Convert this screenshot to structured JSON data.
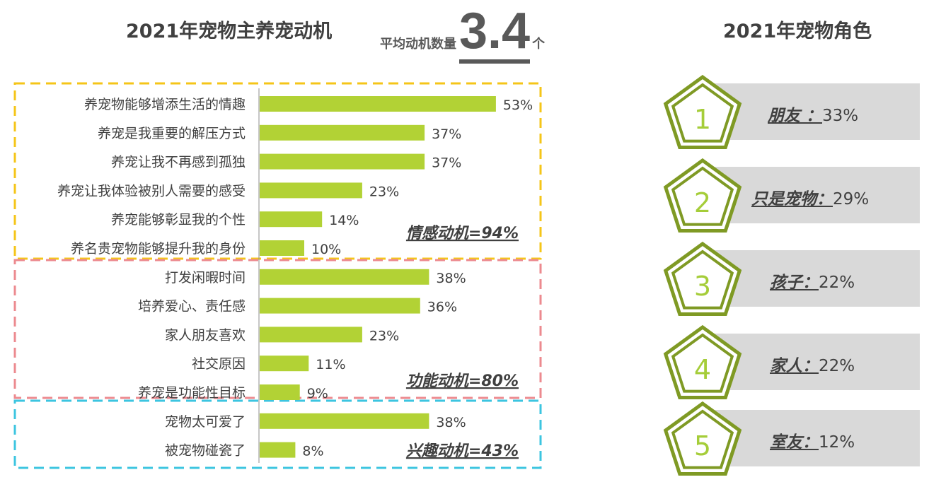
{
  "title_left": "2021年宠物主养宠动机",
  "avg": {
    "label": "平均动机数量",
    "value": "3.4",
    "unit": "个"
  },
  "title_right": "2021年宠物角色",
  "colors": {
    "bar": "#b2d235",
    "group_emotional": "#f5c518",
    "group_functional": "#ec8a8f",
    "group_interest": "#3cc5e0",
    "pentagon": "#7f9a24",
    "pentagon_number": "#a5cd39",
    "band": "#d9d9d9"
  },
  "chart_data": {
    "type": "bar",
    "orientation": "horizontal",
    "categories": [
      "养宠物能够增添生活的情趣",
      "养宠是我重要的解压方式",
      "养宠让我不再感到孤独",
      "养宠让我体验被别人需要的感受",
      "养宠能够彰显我的个性",
      "养名贵宠物能够提升我的身份",
      "打发闲暇时间",
      "培养爱心、责任感",
      "家人朋友喜欢",
      "社交原因",
      "养宠是功能性目标",
      "宠物太可爱了",
      "被宠物碰瓷了"
    ],
    "values": [
      53,
      37,
      37,
      23,
      14,
      10,
      38,
      36,
      23,
      11,
      9,
      38,
      8
    ],
    "value_labels": [
      "53%",
      "37%",
      "37%",
      "23%",
      "14%",
      "10%",
      "38%",
      "36%",
      "23%",
      "11%",
      "9%",
      "38%",
      "8%"
    ],
    "groups": [
      {
        "label": "情感动机=94%",
        "start": 0,
        "end": 5
      },
      {
        "label": "功能动机=80%",
        "start": 6,
        "end": 10
      },
      {
        "label": "兴趣动机=43%",
        "start": 11,
        "end": 12
      }
    ]
  },
  "roles": [
    {
      "rank": "1",
      "name": "朋友 ：",
      "value": "33%"
    },
    {
      "rank": "2",
      "name": "只是宠物：",
      "value": "29%"
    },
    {
      "rank": "3",
      "name": "孩子：",
      "value": "22%"
    },
    {
      "rank": "4",
      "name": "家人：",
      "value": "22%"
    },
    {
      "rank": "5",
      "name": "室友：",
      "value": "12%"
    }
  ]
}
